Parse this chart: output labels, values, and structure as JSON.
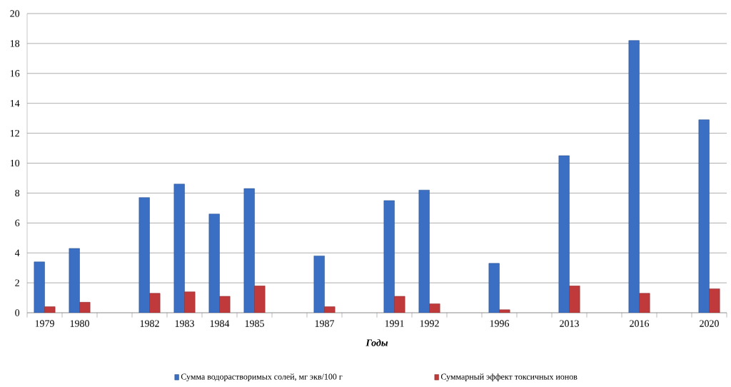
{
  "chart_data": {
    "type": "bar",
    "xlabel": "Годы",
    "categories": [
      "1979",
      "1980",
      null,
      "1982",
      "1983",
      "1984",
      "1985",
      null,
      "1987",
      null,
      "1991",
      "1992",
      null,
      "1996",
      null,
      "2013",
      null,
      "2016",
      null,
      "2020"
    ],
    "series": [
      {
        "name": "Сумма водорастворимых солей, мг экв/100 г",
        "color": "#3a6fc4",
        "values": [
          3.4,
          4.3,
          null,
          7.7,
          8.6,
          6.6,
          8.3,
          null,
          3.8,
          null,
          7.5,
          8.2,
          null,
          3.3,
          null,
          10.5,
          null,
          18.2,
          null,
          12.9
        ]
      },
      {
        "name": "Суммарный эффект токсичных ионов",
        "color": "#c0393b",
        "values": [
          0.4,
          0.7,
          null,
          1.3,
          1.4,
          1.1,
          1.8,
          null,
          0.4,
          null,
          1.1,
          0.6,
          null,
          0.2,
          null,
          1.8,
          null,
          1.3,
          null,
          1.6
        ]
      }
    ],
    "ylim": [
      0,
      20
    ],
    "yticks": [
      0,
      2,
      4,
      6,
      8,
      10,
      12,
      14,
      16,
      18,
      20
    ],
    "grid": "y",
    "legend": "bottom"
  }
}
